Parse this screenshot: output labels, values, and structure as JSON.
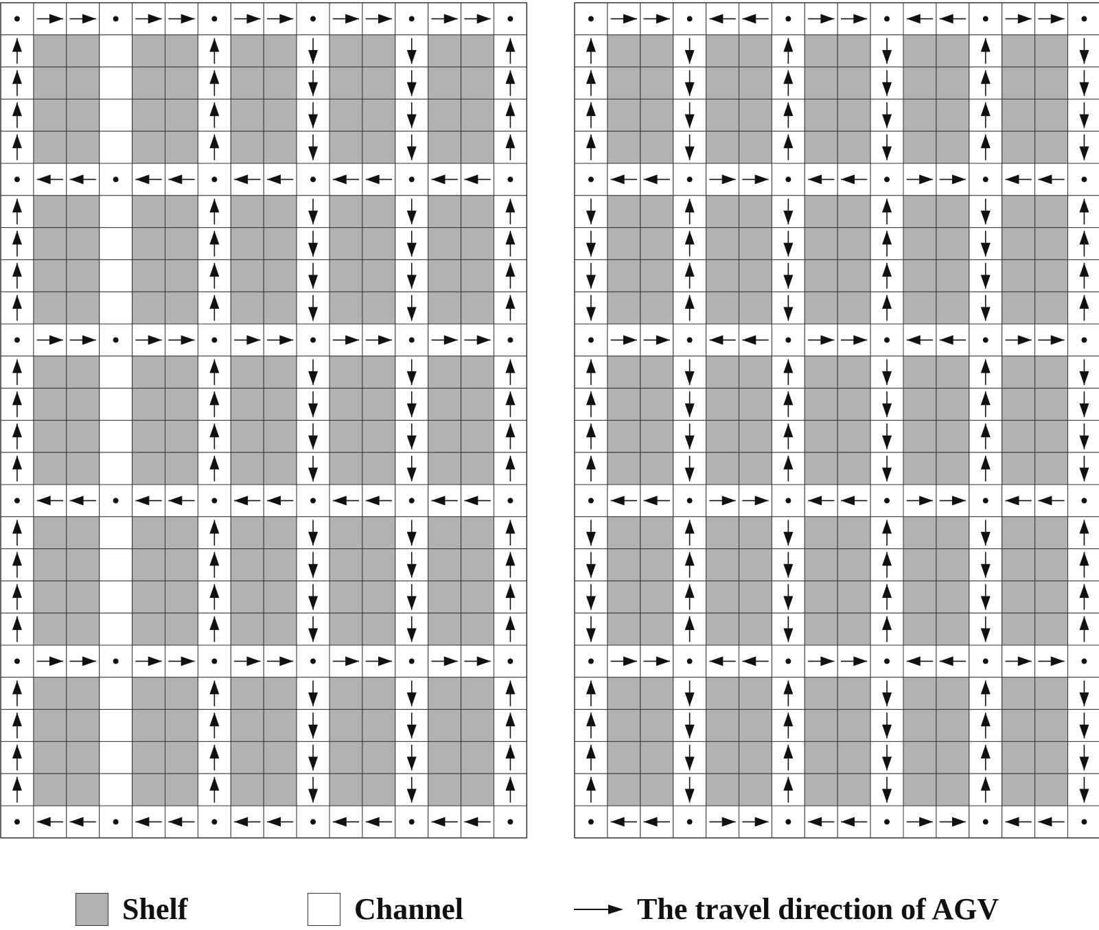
{
  "colors": {
    "shelf": "#b2b2b2",
    "channel": "#ffffff",
    "grid_line": "#333333",
    "arrow": "#111111"
  },
  "layouts": [
    {
      "name": "",
      "grid": [
        "o>>o>>o>>o>>o>>o",
        "^SS|SS^SSvSSvSS^",
        "^SS|SS^SSvSSvSS^",
        "^SS|SS^SSvSSvSS^",
        "^SS|SS^SSvSSvSS^",
        "o<<o<<o<<o<<o<<o",
        "^SS|SS^SSvSSvSS^",
        "^SS|SS^SSvSSvSS^",
        "^SS|SS^SSvSSvSS^",
        "^SS|SS^SSvSSvSS^",
        "o>>o>>o>>o>>o>>o",
        "^SS|SS^SSvSSvSS^",
        "^SS|SS^SSvSSvSS^",
        "^SS|SS^SSvSSvSS^",
        "^SS|SS^SSvSSvSS^",
        "o<<o<<o<<o<<o<<o",
        "^SS|SS^SSvSSvSS^",
        "^SS|SS^SSvSSvSS^",
        "^SS|SS^SSvSSvSS^",
        "^SS|SS^SSvSSvSS^",
        "o>>o>>o>>o>>o>>o",
        "^SS|SS^SSvSSvSS^",
        "^SS|SS^SSvSSvSS^",
        "^SS|SS^SSvSSvSS^",
        "^SS|SS^SSvSSvSS^",
        "o<<o<<o<<o<<o<<o"
      ]
    },
    {
      "name": "",
      "grid": [
        "o>>o<<o>>o<<o>>o",
        "^SSvSS^SSvSS^SSv",
        "^SSvSS^SSvSS^SSv",
        "^SSvSS^SSvSS^SSv",
        "^SSvSS^SSvSS^SSv",
        "o<<o>>o<<o>>o<<o",
        "vSS^SSvSS^SSvSS^",
        "vSS^SSvSS^SSvSS^",
        "vSS^SSvSS^SSvSS^",
        "vSS^SSvSS^SSvSS^",
        "o>>o<<o>>o<<o>>o",
        "^SSvSS^SSvSS^SSv",
        "^SSvSS^SSvSS^SSv",
        "^SSvSS^SSvSS^SSv",
        "^SSvSS^SSvSS^SSv",
        "o<<o>>o<<o>>o<<o",
        "vSS^SSvSS^SSvSS^",
        "vSS^SSvSS^SSvSS^",
        "vSS^SSvSS^SSvSS^",
        "vSS^SSvSS^SSvSS^",
        "o>>o<<o>>o<<o>>o",
        "^SSvSS^SSvSS^SSv",
        "^SSvSS^SSvSS^SSv",
        "^SSvSS^SSvSS^SSv",
        "^SSvSS^SSvSS^SSv",
        "o<<o>>o<<o>>o<<o"
      ]
    }
  ],
  "cell_legend_key": {
    "o": "node",
    ">": "right",
    "<": "left",
    "^": "up",
    "v": "down",
    "S": "shelf",
    "|": "empty-channel"
  },
  "legend": {
    "shelf_label": "Shelf",
    "channel_label": "Channel",
    "direction_label": "The travel direction of AGV"
  }
}
